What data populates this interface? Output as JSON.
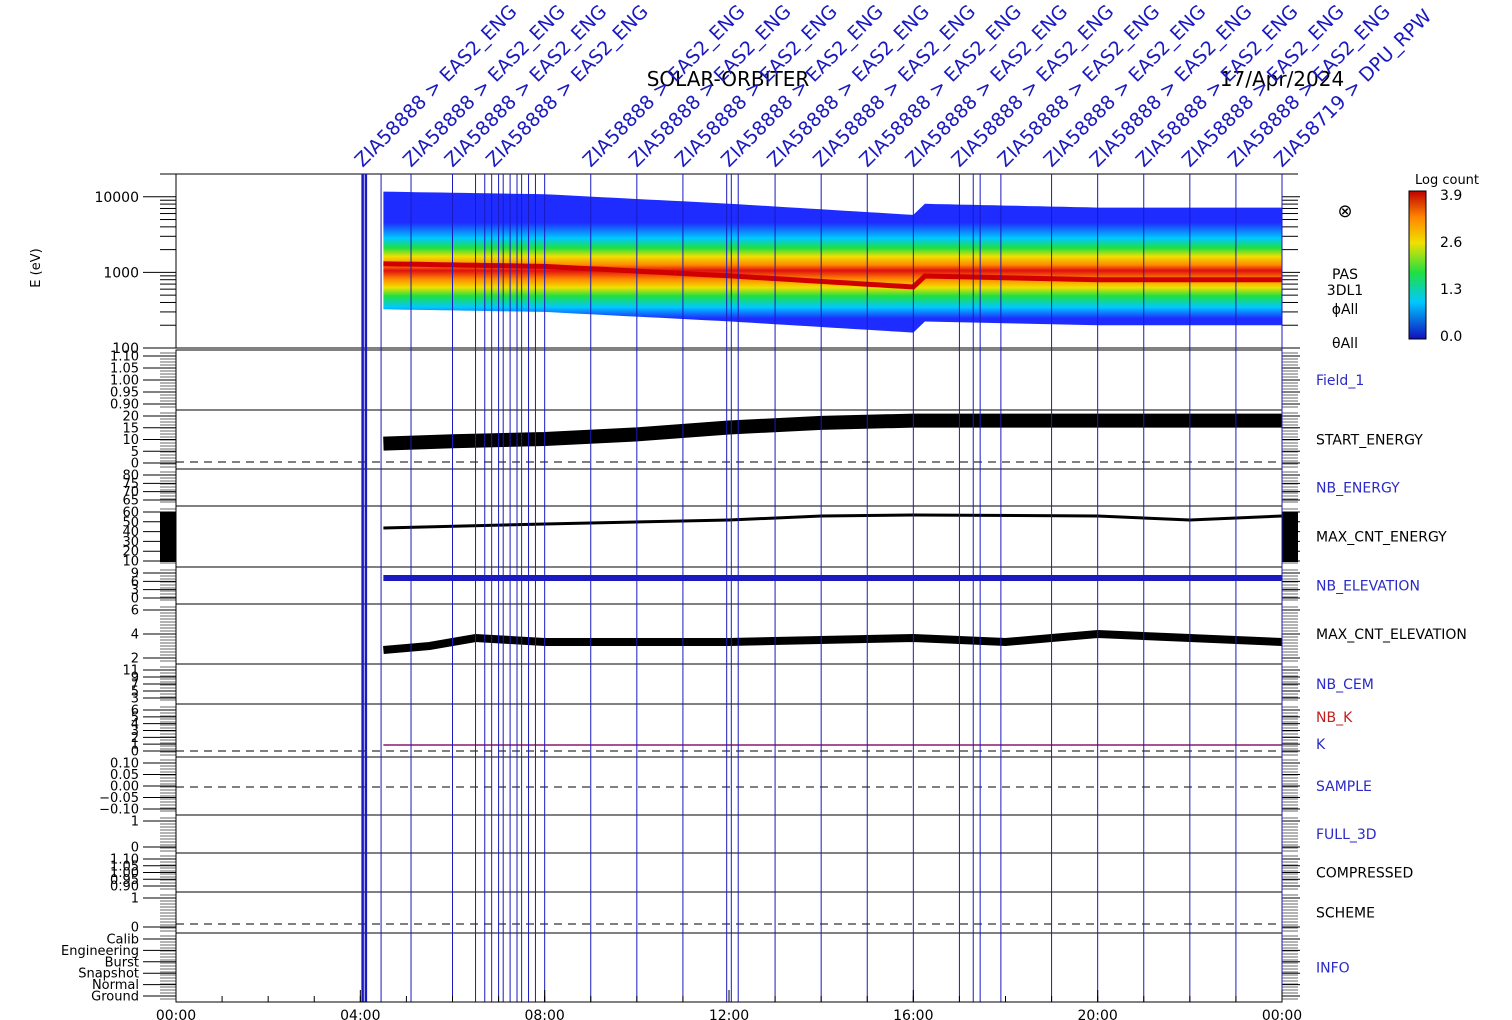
{
  "header": {
    "mission": "SOLAR-ORBITER",
    "date": "17/Apr/2024"
  },
  "chart_data": {
    "type": "heatmap",
    "title": "SOLAR-ORBITER",
    "date": "17/Apr/2024",
    "x_axis": {
      "tick_labels": [
        "00:00",
        "04:00",
        "08:00",
        "12:00",
        "16:00",
        "20:00",
        "00:00"
      ],
      "range_hours": [
        0,
        24
      ]
    },
    "spectrogram": {
      "ylabel": "E (eV)",
      "scale": "log",
      "ylim": [
        100,
        20000
      ],
      "tick_labels": [
        "10000",
        "1000",
        "100"
      ],
      "data_start_hour": 4.5,
      "data_end_hour": 24,
      "peak_energy_ev_by_hour": [
        [
          4.5,
          1300
        ],
        [
          8,
          1200
        ],
        [
          12,
          900
        ],
        [
          16,
          640
        ],
        [
          16.1,
          900
        ],
        [
          20,
          800
        ],
        [
          24,
          800
        ]
      ],
      "side_labels": [
        "PAS",
        "3DL1",
        "ϕAll",
        "θAll"
      ],
      "colorbar": {
        "label": "Log count",
        "ticks": [
          "3.9",
          "2.6",
          "1.3",
          "0.0"
        ],
        "range": [
          0,
          3.9
        ]
      }
    },
    "panels": [
      {
        "name": "Field_1",
        "tick_labels": [
          "1.10",
          "1.05",
          "1.00",
          "0.95",
          "0.90"
        ],
        "label_color": "#2a2ac8"
      },
      {
        "name": "START_ENERGY",
        "tick_labels": [
          "20",
          "15",
          "10",
          "5",
          "0"
        ],
        "label_color": "#000000",
        "series_by_hour": [
          [
            4.5,
            8
          ],
          [
            6,
            9
          ],
          [
            8,
            10
          ],
          [
            10,
            12
          ],
          [
            12,
            15
          ],
          [
            14,
            17
          ],
          [
            16,
            18
          ],
          [
            24,
            18
          ]
        ]
      },
      {
        "name": "NB_ENERGY",
        "tick_labels": [
          "80",
          "75",
          "70",
          "65"
        ],
        "label_color": "#2a2ac8"
      },
      {
        "name": "MAX_CNT_ENERGY",
        "tick_labels": [
          "60",
          "50",
          "40",
          "30",
          "20",
          "10"
        ],
        "label_color": "#000000",
        "series_by_hour": [
          [
            4.5,
            44
          ],
          [
            8,
            48
          ],
          [
            12,
            52
          ],
          [
            14,
            56
          ],
          [
            16,
            57
          ],
          [
            20,
            56
          ],
          [
            22,
            52
          ],
          [
            24,
            56
          ]
        ]
      },
      {
        "name": "NB_ELEVATION",
        "tick_labels": [
          "9",
          "6",
          "3",
          "0"
        ],
        "label_color": "#2a2ac8",
        "value": 9
      },
      {
        "name": "MAX_CNT_ELEVATION",
        "tick_labels": [
          "6",
          "4",
          "2"
        ],
        "label_color": "#000000"
      },
      {
        "name": "NB_CEM",
        "tick_labels": [
          "11",
          "9",
          "7",
          "5",
          "3"
        ],
        "label_color": "#2a2ac8"
      },
      {
        "name": "NB_K",
        "tick_labels": [
          "6",
          "5",
          "4",
          "3",
          "2",
          "1",
          "0"
        ],
        "label_color": "#c02020",
        "extra_label": "K",
        "extra_color": "#2a2ac8"
      },
      {
        "name": "SAMPLE",
        "tick_labels": [
          "0.10",
          "0.05",
          "0.00",
          "−0.05",
          "−0.10"
        ],
        "label_color": "#2a2ac8"
      },
      {
        "name": "FULL_3D",
        "tick_labels": [
          "1",
          "0"
        ],
        "label_color": "#2a2ac8"
      },
      {
        "name": "COMPRESSED",
        "tick_labels": [
          "1.10",
          "1.05",
          "1.00",
          "0.95",
          "0.90"
        ],
        "label_color": "#000000"
      },
      {
        "name": "SCHEME",
        "tick_labels": [
          "1",
          "0"
        ],
        "label_color": "#000000"
      },
      {
        "name": "INFO",
        "tick_labels": [
          "Calib",
          "Engineering",
          "Burst",
          "Snapshot",
          "Normal",
          "Ground"
        ],
        "label_color": "#2a2ac8"
      }
    ],
    "event_labels": [
      {
        "hour": 4.05,
        "text": "ZIA58888 > EAS2_ENG"
      },
      {
        "hour": 5.1,
        "text": "ZIA58888 > EAS2_ENG"
      },
      {
        "hour": 6.0,
        "text": "ZIA58888 > EAS2_ENG"
      },
      {
        "hour": 6.9,
        "text": "ZIA58888 > EAS2_ENG"
      },
      {
        "hour": 9.0,
        "text": "ZIA58888 > EAS2_ENG"
      },
      {
        "hour": 10.0,
        "text": "ZIA58888 > EAS2_ENG"
      },
      {
        "hour": 11.0,
        "text": "ZIA58888 > EAS2_ENG"
      },
      {
        "hour": 12.0,
        "text": "ZIA58888 > EAS2_ENG"
      },
      {
        "hour": 13.0,
        "text": "ZIA58888 > EAS2_ENG"
      },
      {
        "hour": 14.0,
        "text": "ZIA58888 > EAS2_ENG"
      },
      {
        "hour": 15.0,
        "text": "ZIA58888 > EAS2_ENG"
      },
      {
        "hour": 16.0,
        "text": "ZIA58888 > EAS2_ENG"
      },
      {
        "hour": 17.0,
        "text": "ZIA58888 > EAS2_ENG"
      },
      {
        "hour": 18.0,
        "text": "ZIA58888 > EAS2_ENG"
      },
      {
        "hour": 19.0,
        "text": "ZIA58888 > EAS2_ENG"
      },
      {
        "hour": 20.0,
        "text": "ZIA58888 > EAS2_ENG"
      },
      {
        "hour": 21.0,
        "text": "ZIA58888 > EAS2_ENG"
      },
      {
        "hour": 22.0,
        "text": "ZIA58888 > EAS2_ENG"
      },
      {
        "hour": 23.0,
        "text": "ZIA58888 > EAS2_ENG"
      },
      {
        "hour": 24.0,
        "text": "ZIA58719 > DPU_RPW"
      }
    ],
    "event_line_hours": [
      4.05,
      4.12,
      4.45,
      5.1,
      6.0,
      6.5,
      6.7,
      6.85,
      7.0,
      7.1,
      7.25,
      7.4,
      7.5,
      7.65,
      7.8,
      8.0,
      9.0,
      10.0,
      11.0,
      11.95,
      12.05,
      12.2,
      13.0,
      14.0,
      15.0,
      16.0,
      17.0,
      17.3,
      17.45,
      17.9,
      19.0,
      20.0,
      21.0,
      22.0,
      23.0,
      24.0
    ]
  }
}
